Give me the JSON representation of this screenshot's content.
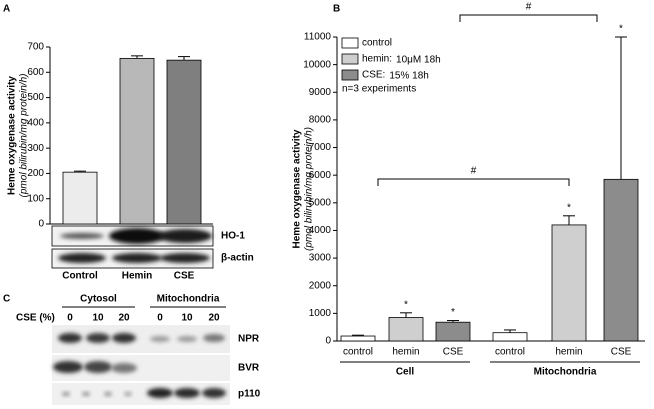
{
  "chart_data": [
    {
      "type": "bar",
      "panel": "A",
      "ylabel": "Heme oxygenase activity",
      "ylabel_note": "(pmol bilirubin/mg protein/h)",
      "categories": [
        "Control",
        "Hemin",
        "CSE"
      ],
      "values": [
        205,
        655,
        648
      ],
      "errors": [
        4,
        10,
        14
      ],
      "colors": [
        "#ececec",
        "#b8b8b8",
        "#7f7f7f"
      ],
      "ylim": [
        0,
        700
      ],
      "yticks": [
        0,
        100,
        200,
        300,
        400,
        500,
        600,
        700
      ],
      "blot_labels": [
        "HO-1",
        "β-actin"
      ]
    },
    {
      "type": "grouped-bar",
      "panel": "B",
      "ylabel": "Heme oxygenase activity",
      "ylabel_note": "(pmol bilirubin/mg protein/h)",
      "legend": [
        {
          "name": "control",
          "color": "#ffffff"
        },
        {
          "name": "hemin:",
          "detail": "10μM 18h",
          "color": "#cfcfcf"
        },
        {
          "name": "CSE:",
          "detail": "15% 18h",
          "color": "#8c8c8c"
        }
      ],
      "note": "n=3 experiments",
      "groups": [
        {
          "name": "Cell",
          "categories": [
            "control",
            "hemin",
            "CSE"
          ],
          "values": [
            180,
            850,
            680
          ],
          "errors": [
            30,
            170,
            60
          ],
          "markers": [
            null,
            "*",
            "*"
          ]
        },
        {
          "name": "Mitochondria",
          "categories": [
            "control",
            "hemin",
            "CSE"
          ],
          "values": [
            300,
            4200,
            5850
          ],
          "errors": [
            100,
            330,
            5150
          ],
          "markers": [
            null,
            "*",
            "*"
          ]
        }
      ],
      "brackets": [
        "#",
        "#"
      ],
      "ylim": [
        0,
        11000
      ],
      "yticks": [
        0,
        1000,
        2000,
        3000,
        4000,
        5000,
        6000,
        7000,
        8000,
        9000,
        10000,
        11000
      ]
    }
  ],
  "panel_c": {
    "label": "C",
    "fractions": [
      "Cytosol",
      "Mitochondria"
    ],
    "dose_label": "CSE (%)",
    "doses": [
      "0",
      "10",
      "20",
      "0",
      "10",
      "20"
    ],
    "rows": [
      "NPR",
      "BVR",
      "p110"
    ]
  }
}
